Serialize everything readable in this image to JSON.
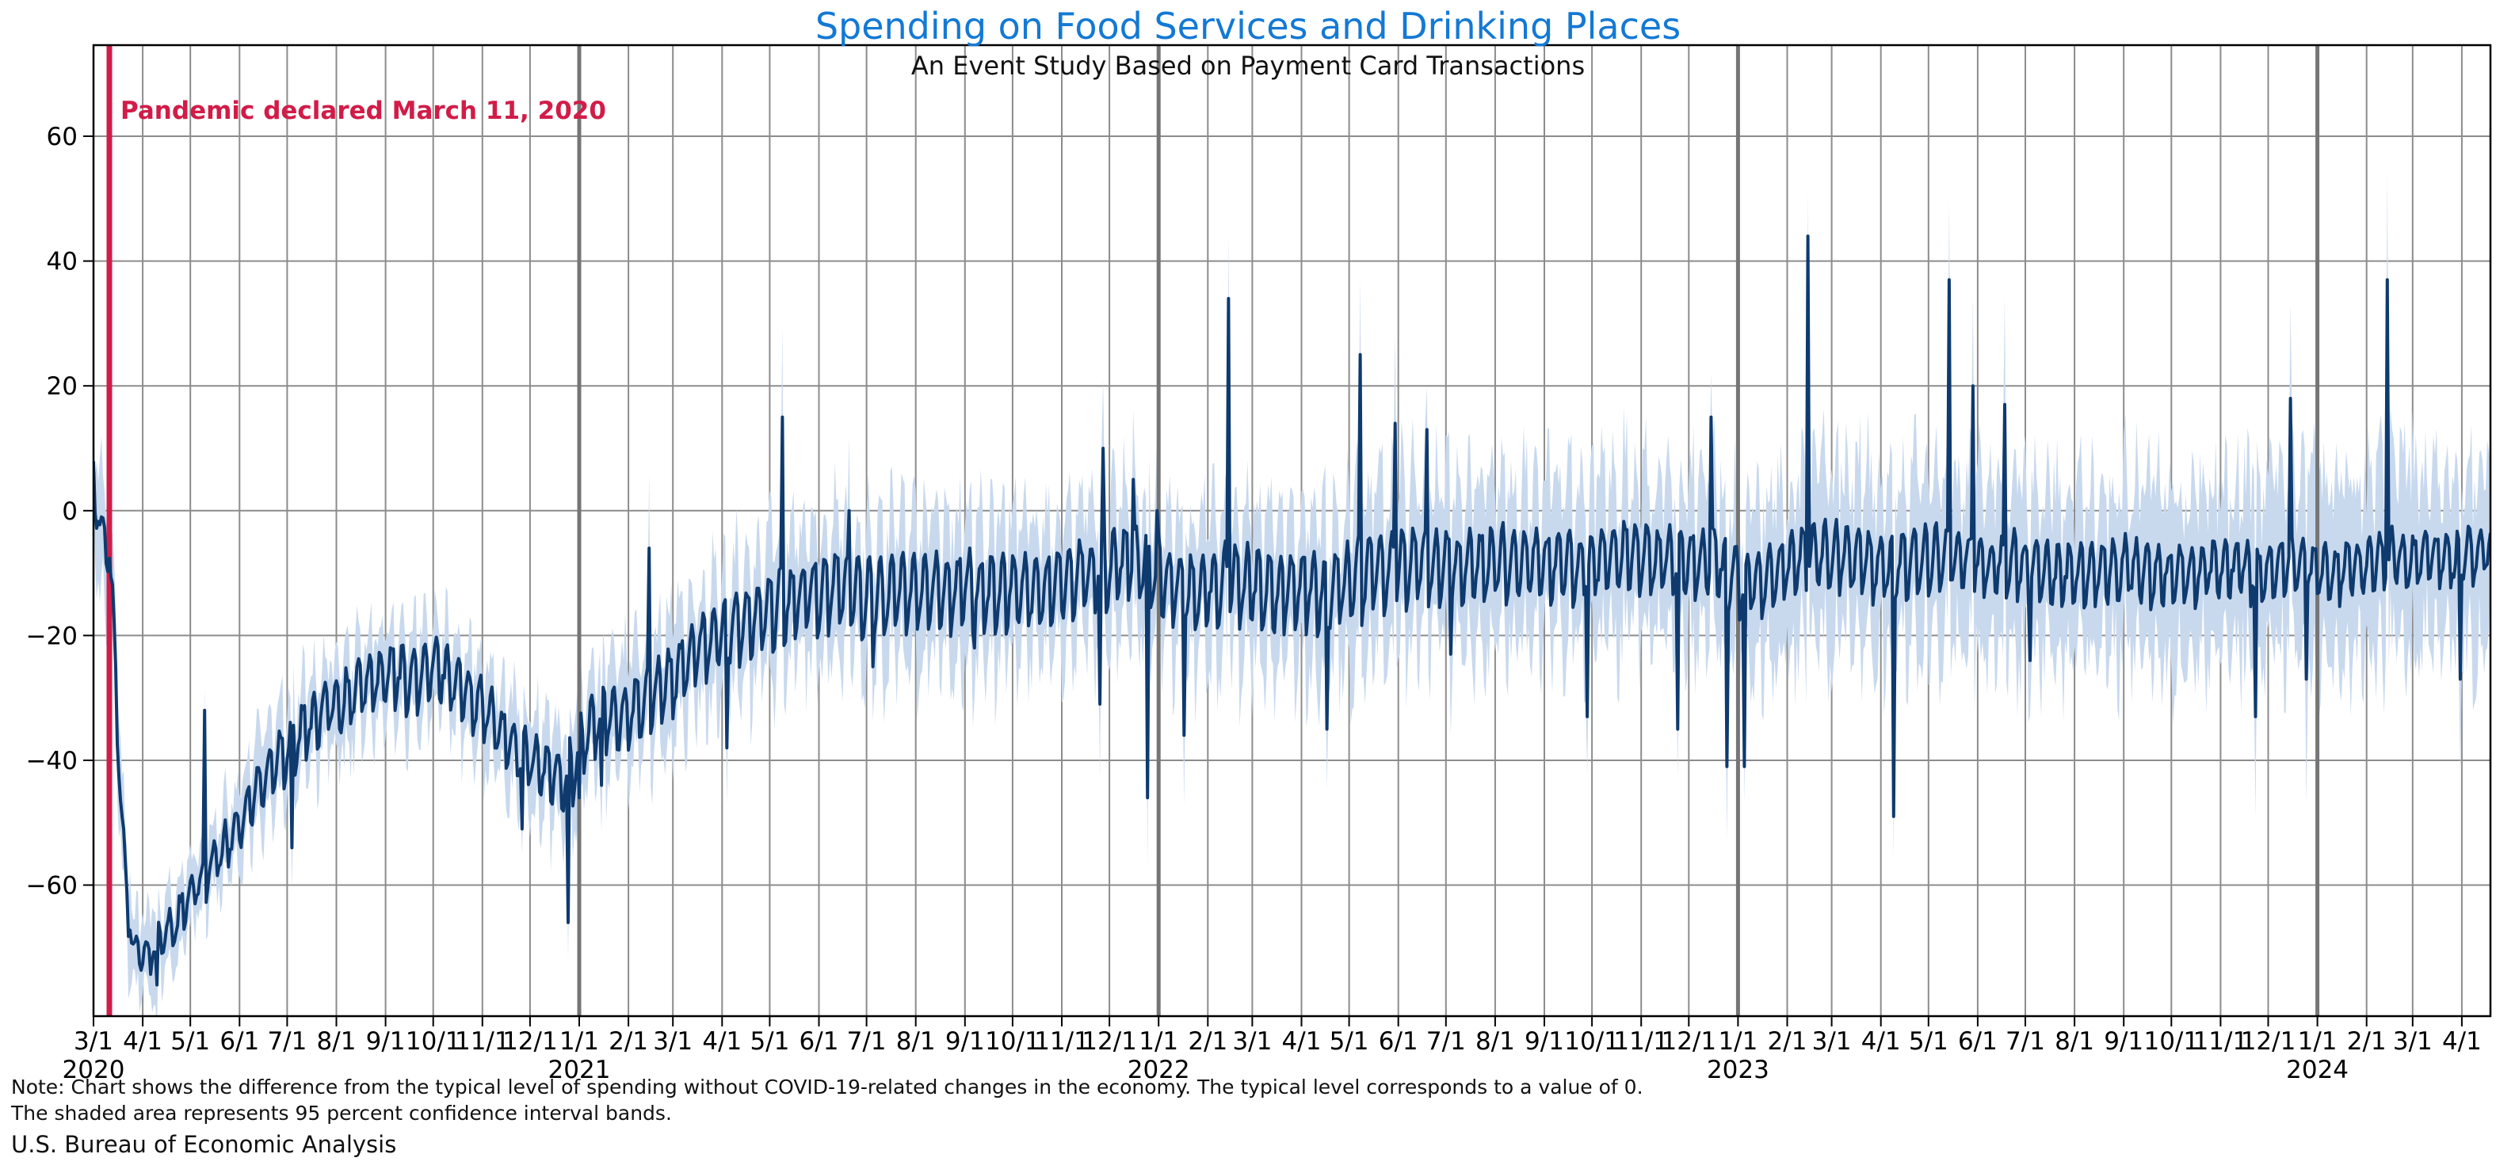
{
  "header": {
    "title": "Spending on Food Services and Drinking Places",
    "subtitle": "An Event Study Based on Payment Card Transactions"
  },
  "annotation": {
    "text": "Pandemic declared March 11, 2020",
    "date": "3/11/2020"
  },
  "notes": {
    "line1": "Note: Chart shows the difference from the typical level of spending without COVID-19-related changes in the economy. The typical level corresponds to a value of 0.",
    "line2": "The shaded area represents 95 percent confidence interval bands."
  },
  "source": "U.S. Bureau of Economic Analysis",
  "chart_data": {
    "type": "line",
    "title": "Spending on Food Services and Drinking Places",
    "subtitle": "An Event Study Based on Payment Card Transactions",
    "series_name": "Difference from typical level of spending (percent)",
    "band_meaning": "95 percent confidence interval bands",
    "x_start_date": "3/1/2020",
    "x_end_date": "4/20/2024",
    "x_domain_days": 1510,
    "ylim": [
      -81,
      74.6
    ],
    "yticks": [
      -60,
      -40,
      -20,
      0,
      20,
      40,
      60
    ],
    "ytick_labels": [
      "−60",
      "−40",
      "−20",
      "0",
      "20",
      "40",
      "60"
    ],
    "grid": true,
    "legend": "none",
    "month_ticks": [
      [
        0,
        "3/1"
      ],
      [
        31,
        "4/1"
      ],
      [
        61,
        "5/1"
      ],
      [
        92,
        "6/1"
      ],
      [
        122,
        "7/1"
      ],
      [
        153,
        "8/1"
      ],
      [
        184,
        "9/1"
      ],
      [
        214,
        "10/1"
      ],
      [
        245,
        "11/1"
      ],
      [
        275,
        "12/1"
      ],
      [
        306,
        "1/1"
      ],
      [
        337,
        "2/1"
      ],
      [
        365,
        "3/1"
      ],
      [
        396,
        "4/1"
      ],
      [
        426,
        "5/1"
      ],
      [
        457,
        "6/1"
      ],
      [
        487,
        "7/1"
      ],
      [
        518,
        "8/1"
      ],
      [
        549,
        "9/1"
      ],
      [
        579,
        "10/1"
      ],
      [
        610,
        "11/1"
      ],
      [
        640,
        "12/1"
      ],
      [
        671,
        "1/1"
      ],
      [
        702,
        "2/1"
      ],
      [
        730,
        "3/1"
      ],
      [
        761,
        "4/1"
      ],
      [
        791,
        "5/1"
      ],
      [
        822,
        "6/1"
      ],
      [
        852,
        "7/1"
      ],
      [
        883,
        "8/1"
      ],
      [
        914,
        "9/1"
      ],
      [
        944,
        "10/1"
      ],
      [
        975,
        "11/1"
      ],
      [
        1005,
        "12/1"
      ],
      [
        1036,
        "1/1"
      ],
      [
        1067,
        "2/1"
      ],
      [
        1095,
        "3/1"
      ],
      [
        1126,
        "4/1"
      ],
      [
        1156,
        "5/1"
      ],
      [
        1187,
        "6/1"
      ],
      [
        1217,
        "7/1"
      ],
      [
        1248,
        "8/1"
      ],
      [
        1279,
        "9/1"
      ],
      [
        1309,
        "10/1"
      ],
      [
        1340,
        "11/1"
      ],
      [
        1370,
        "12/1"
      ],
      [
        1401,
        "1/1"
      ],
      [
        1432,
        "2/1"
      ],
      [
        1461,
        "3/1"
      ],
      [
        1492,
        "4/1"
      ]
    ],
    "year_labels": [
      [
        0,
        "2020"
      ],
      [
        306,
        "2021"
      ],
      [
        671,
        "2022"
      ],
      [
        1036,
        "2023"
      ],
      [
        1401,
        "2024"
      ]
    ],
    "event_line_day": 10,
    "event_line_date": "3/11/2020",
    "trend_keypoints": [
      [
        0,
        6
      ],
      [
        2,
        0
      ],
      [
        5,
        -4
      ],
      [
        8,
        -4
      ],
      [
        10,
        -7
      ],
      [
        12,
        -14
      ],
      [
        14,
        -28
      ],
      [
        17,
        -46
      ],
      [
        21,
        -62
      ],
      [
        25,
        -70
      ],
      [
        31,
        -71
      ],
      [
        38,
        -70
      ],
      [
        45,
        -68
      ],
      [
        52,
        -66
      ],
      [
        61,
        -62
      ],
      [
        68,
        -59
      ],
      [
        75,
        -57
      ],
      [
        85,
        -53
      ],
      [
        92,
        -50
      ],
      [
        100,
        -46
      ],
      [
        108,
        -43
      ],
      [
        115,
        -40
      ],
      [
        122,
        -38
      ],
      [
        130,
        -36
      ],
      [
        140,
        -33
      ],
      [
        150,
        -31
      ],
      [
        160,
        -30
      ],
      [
        170,
        -28
      ],
      [
        180,
        -27
      ],
      [
        190,
        -26
      ],
      [
        200,
        -27
      ],
      [
        210,
        -26
      ],
      [
        214,
        -25
      ],
      [
        222,
        -26
      ],
      [
        230,
        -28
      ],
      [
        240,
        -30
      ],
      [
        250,
        -33
      ],
      [
        258,
        -36
      ],
      [
        266,
        -38
      ],
      [
        275,
        -40
      ],
      [
        285,
        -42
      ],
      [
        295,
        -43
      ],
      [
        303,
        -41
      ],
      [
        308,
        -37
      ],
      [
        315,
        -34
      ],
      [
        325,
        -33
      ],
      [
        337,
        -33
      ],
      [
        345,
        -31
      ],
      [
        358,
        -28
      ],
      [
        365,
        -27
      ],
      [
        375,
        -24
      ],
      [
        385,
        -21
      ],
      [
        396,
        -19
      ],
      [
        410,
        -18
      ],
      [
        420,
        -17
      ],
      [
        434,
        -15
      ],
      [
        445,
        -14
      ],
      [
        457,
        -13
      ],
      [
        470,
        -12
      ],
      [
        480,
        -13
      ],
      [
        490,
        -14
      ],
      [
        505,
        -13
      ],
      [
        520,
        -12
      ],
      [
        535,
        -13
      ],
      [
        549,
        -12
      ],
      [
        565,
        -13
      ],
      [
        580,
        -12
      ],
      [
        595,
        -13
      ],
      [
        610,
        -11
      ],
      [
        625,
        -10
      ],
      [
        640,
        -9
      ],
      [
        650,
        -8
      ],
      [
        662,
        -9
      ],
      [
        671,
        -10
      ],
      [
        680,
        -12
      ],
      [
        692,
        -13
      ],
      [
        705,
        -12
      ],
      [
        718,
        -11
      ],
      [
        730,
        -12
      ],
      [
        745,
        -13
      ],
      [
        761,
        -12
      ],
      [
        775,
        -13
      ],
      [
        791,
        -11
      ],
      [
        806,
        -10
      ],
      [
        822,
        -9
      ],
      [
        836,
        -8
      ],
      [
        852,
        -9
      ],
      [
        868,
        -9
      ],
      [
        883,
        -8
      ],
      [
        900,
        -8
      ],
      [
        914,
        -8
      ],
      [
        930,
        -9
      ],
      [
        944,
        -8
      ],
      [
        960,
        -7
      ],
      [
        975,
        -7
      ],
      [
        992,
        -8
      ],
      [
        1008,
        -8
      ],
      [
        1022,
        -8
      ],
      [
        1036,
        -11
      ],
      [
        1050,
        -12
      ],
      [
        1062,
        -10
      ],
      [
        1072,
        -8
      ],
      [
        1082,
        -7
      ],
      [
        1095,
        -7
      ],
      [
        1110,
        -8
      ],
      [
        1122,
        -9
      ],
      [
        1134,
        -9
      ],
      [
        1146,
        -8
      ],
      [
        1158,
        -8
      ],
      [
        1170,
        -7
      ],
      [
        1182,
        -8
      ],
      [
        1194,
        -9
      ],
      [
        1206,
        -8
      ],
      [
        1218,
        -9
      ],
      [
        1232,
        -10
      ],
      [
        1248,
        -10
      ],
      [
        1264,
        -10
      ],
      [
        1279,
        -9
      ],
      [
        1295,
        -10
      ],
      [
        1309,
        -10
      ],
      [
        1325,
        -10
      ],
      [
        1340,
        -9
      ],
      [
        1352,
        -9
      ],
      [
        1364,
        -10
      ],
      [
        1376,
        -9
      ],
      [
        1388,
        -8
      ],
      [
        1401,
        -10
      ],
      [
        1412,
        -10
      ],
      [
        1424,
        -9
      ],
      [
        1436,
        -8
      ],
      [
        1448,
        -7
      ],
      [
        1460,
        -8
      ],
      [
        1472,
        -7
      ],
      [
        1484,
        -8
      ],
      [
        1496,
        -7
      ],
      [
        1510,
        -6
      ]
    ],
    "weekly_pattern": [
      0.6,
      -1.1,
      -0.9,
      -0.4,
      0.1,
      0.8,
      0.9
    ],
    "weekly_amp_keypoints": [
      [
        0,
        4
      ],
      [
        12,
        3
      ],
      [
        31,
        2.5
      ],
      [
        61,
        3
      ],
      [
        92,
        3.5
      ],
      [
        122,
        4.5
      ],
      [
        184,
        4.5
      ],
      [
        245,
        4.5
      ],
      [
        306,
        4.5
      ],
      [
        365,
        5
      ],
      [
        426,
        5.5
      ],
      [
        487,
        6
      ],
      [
        549,
        5.5
      ],
      [
        610,
        5.5
      ],
      [
        671,
        5.5
      ],
      [
        730,
        6
      ],
      [
        791,
        6
      ],
      [
        852,
        5.5
      ],
      [
        914,
        5
      ],
      [
        975,
        5
      ],
      [
        1036,
        5
      ],
      [
        1095,
        5
      ],
      [
        1156,
        5
      ],
      [
        1217,
        4.5
      ],
      [
        1279,
        4.5
      ],
      [
        1340,
        4
      ],
      [
        1401,
        4
      ],
      [
        1461,
        4
      ],
      [
        1510,
        4
      ]
    ],
    "band_halfwidth_keypoints": [
      [
        0,
        10
      ],
      [
        10,
        9
      ],
      [
        20,
        7
      ],
      [
        31,
        6
      ],
      [
        61,
        5
      ],
      [
        92,
        6
      ],
      [
        122,
        7
      ],
      [
        184,
        7
      ],
      [
        245,
        7
      ],
      [
        306,
        8
      ],
      [
        365,
        9
      ],
      [
        396,
        9
      ],
      [
        426,
        10
      ],
      [
        487,
        10
      ],
      [
        549,
        11
      ],
      [
        610,
        10
      ],
      [
        671,
        10
      ],
      [
        730,
        11
      ],
      [
        791,
        12
      ],
      [
        852,
        12
      ],
      [
        914,
        12
      ],
      [
        975,
        13
      ],
      [
        1036,
        12
      ],
      [
        1095,
        13
      ],
      [
        1156,
        13
      ],
      [
        1217,
        13
      ],
      [
        1279,
        13
      ],
      [
        1340,
        13
      ],
      [
        1401,
        14
      ],
      [
        1461,
        14
      ],
      [
        1510,
        14
      ]
    ],
    "noise": {
      "line": 1.4,
      "band": 0.5
    },
    "spikes": [
      {
        "day": 40,
        "date": "4/10/2020",
        "value": -76
      },
      {
        "day": 70,
        "date": "5/10/2020",
        "value": -32
      },
      {
        "day": 125,
        "date": "7/4/2020",
        "value": -54
      },
      {
        "day": 270,
        "date": "11/26/2020",
        "value": -51
      },
      {
        "day": 299,
        "date": "12/25/2020",
        "value": -66
      },
      {
        "day": 306,
        "date": "1/1/2021",
        "value": -46
      },
      {
        "day": 320,
        "date": "1/15/2021",
        "value": -44
      },
      {
        "day": 350,
        "date": "2/14/2021",
        "value": -6
      },
      {
        "day": 399,
        "date": "4/4/2021",
        "value": -38
      },
      {
        "day": 434,
        "date": "5/9/2021",
        "value": 15
      },
      {
        "day": 476,
        "date": "6/20/2021",
        "value": 0
      },
      {
        "day": 491,
        "date": "7/5/2021",
        "value": -25
      },
      {
        "day": 555,
        "date": "9/6/2021",
        "value": -22
      },
      {
        "day": 634,
        "date": "11/25/2021",
        "value": -31
      },
      {
        "day": 636,
        "date": "11/27/2021",
        "value": 10
      },
      {
        "day": 655,
        "date": "12/16/2021",
        "value": 5
      },
      {
        "day": 664,
        "date": "12/25/2021",
        "value": -46
      },
      {
        "day": 670,
        "date": "12/31/2021",
        "value": 0
      },
      {
        "day": 687,
        "date": "1/17/2022",
        "value": -36
      },
      {
        "day": 715,
        "date": "2/14/2022",
        "value": 34
      },
      {
        "day": 777,
        "date": "4/17/2022",
        "value": -35
      },
      {
        "day": 798,
        "date": "5/8/2022",
        "value": 25
      },
      {
        "day": 820,
        "date": "5/30/2022",
        "value": 14
      },
      {
        "day": 840,
        "date": "6/19/2022",
        "value": 13
      },
      {
        "day": 855,
        "date": "7/4/2022",
        "value": -23
      },
      {
        "day": 941,
        "date": "9/28/2022",
        "value": -33
      },
      {
        "day": 998,
        "date": "11/24/2022",
        "value": -35
      },
      {
        "day": 1019,
        "date": "12/15/2022",
        "value": 15
      },
      {
        "day": 1029,
        "date": "12/25/2022",
        "value": -41
      },
      {
        "day": 1040,
        "date": "1/5/2023",
        "value": -41
      },
      {
        "day": 1080,
        "date": "2/14/2023",
        "value": 44
      },
      {
        "day": 1134,
        "date": "4/9/2023",
        "value": -49
      },
      {
        "day": 1169,
        "date": "5/14/2023",
        "value": 37
      },
      {
        "day": 1184,
        "date": "5/29/2023",
        "value": 20
      },
      {
        "day": 1204,
        "date": "6/18/2023",
        "value": 17
      },
      {
        "day": 1220,
        "date": "7/4/2023",
        "value": -24
      },
      {
        "day": 1362,
        "date": "11/23/2023",
        "value": -33
      },
      {
        "day": 1384,
        "date": "12/15/2023",
        "value": 18
      },
      {
        "day": 1394,
        "date": "12/25/2023",
        "value": -27
      },
      {
        "day": 1445,
        "date": "2/14/2024",
        "value": 37
      },
      {
        "day": 1491,
        "date": "3/31/2024",
        "value": -27
      }
    ],
    "colors": {
      "line": "#0e3a6e",
      "band": "#c8d9ee",
      "event_line": "#d21c48",
      "grid": "#8c8c8c",
      "year_line": "#757575",
      "frame": "#000000",
      "title": "#1379d4",
      "annotation": "#d21c48",
      "text": "#000000"
    }
  }
}
